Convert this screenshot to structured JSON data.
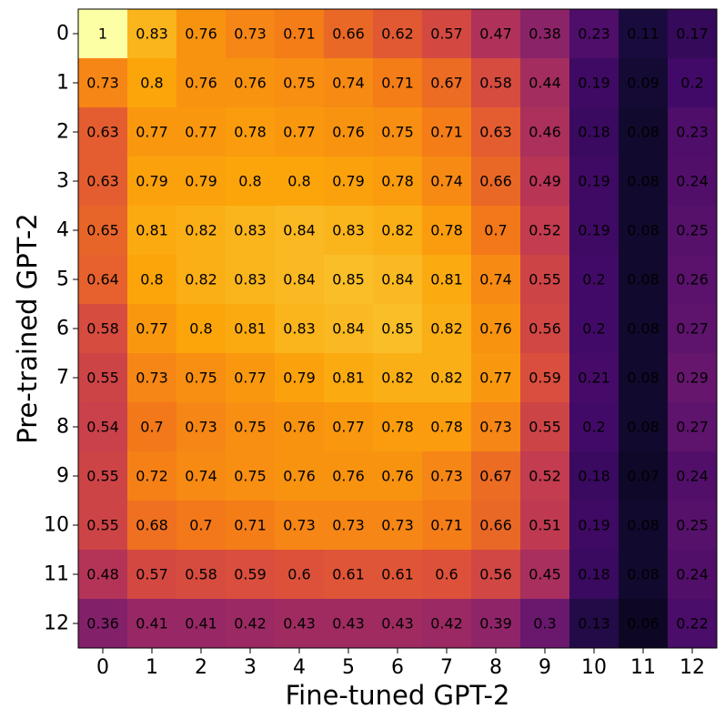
{
  "chart_data": {
    "type": "heatmap",
    "xlabel": "Fine-tuned GPT-2",
    "ylabel": "Pre-trained GPT-2",
    "x_categories": [
      "0",
      "1",
      "2",
      "3",
      "4",
      "5",
      "6",
      "7",
      "8",
      "9",
      "10",
      "11",
      "12"
    ],
    "y_categories": [
      "0",
      "1",
      "2",
      "3",
      "4",
      "5",
      "6",
      "7",
      "8",
      "9",
      "10",
      "11",
      "12"
    ],
    "values": [
      [
        1.0,
        0.83,
        0.76,
        0.73,
        0.71,
        0.66,
        0.62,
        0.57,
        0.47,
        0.38,
        0.23,
        0.11,
        0.17
      ],
      [
        0.73,
        0.8,
        0.76,
        0.76,
        0.75,
        0.74,
        0.71,
        0.67,
        0.58,
        0.44,
        0.19,
        0.09,
        0.2
      ],
      [
        0.63,
        0.77,
        0.77,
        0.78,
        0.77,
        0.76,
        0.75,
        0.71,
        0.63,
        0.46,
        0.18,
        0.08,
        0.23
      ],
      [
        0.63,
        0.79,
        0.79,
        0.8,
        0.8,
        0.79,
        0.78,
        0.74,
        0.66,
        0.49,
        0.19,
        0.08,
        0.24
      ],
      [
        0.65,
        0.81,
        0.82,
        0.83,
        0.84,
        0.83,
        0.82,
        0.78,
        0.7,
        0.52,
        0.19,
        0.08,
        0.25
      ],
      [
        0.64,
        0.8,
        0.82,
        0.83,
        0.84,
        0.85,
        0.84,
        0.81,
        0.74,
        0.55,
        0.2,
        0.08,
        0.26
      ],
      [
        0.58,
        0.77,
        0.8,
        0.81,
        0.83,
        0.84,
        0.85,
        0.82,
        0.76,
        0.56,
        0.2,
        0.08,
        0.27
      ],
      [
        0.55,
        0.73,
        0.75,
        0.77,
        0.79,
        0.81,
        0.82,
        0.82,
        0.77,
        0.59,
        0.21,
        0.08,
        0.29
      ],
      [
        0.54,
        0.7,
        0.73,
        0.75,
        0.76,
        0.77,
        0.78,
        0.78,
        0.73,
        0.55,
        0.2,
        0.08,
        0.27
      ],
      [
        0.55,
        0.72,
        0.74,
        0.75,
        0.76,
        0.76,
        0.76,
        0.73,
        0.67,
        0.52,
        0.18,
        0.07,
        0.24
      ],
      [
        0.55,
        0.68,
        0.7,
        0.71,
        0.73,
        0.73,
        0.73,
        0.71,
        0.66,
        0.51,
        0.19,
        0.08,
        0.25
      ],
      [
        0.48,
        0.57,
        0.58,
        0.59,
        0.6,
        0.61,
        0.61,
        0.6,
        0.56,
        0.45,
        0.18,
        0.08,
        0.24
      ],
      [
        0.36,
        0.41,
        0.41,
        0.42,
        0.43,
        0.43,
        0.43,
        0.42,
        0.39,
        0.3,
        0.13,
        0.06,
        0.22
      ]
    ],
    "colormap": "inferno",
    "value_range": [
      0,
      1
    ],
    "grid": false,
    "legend": "none"
  }
}
